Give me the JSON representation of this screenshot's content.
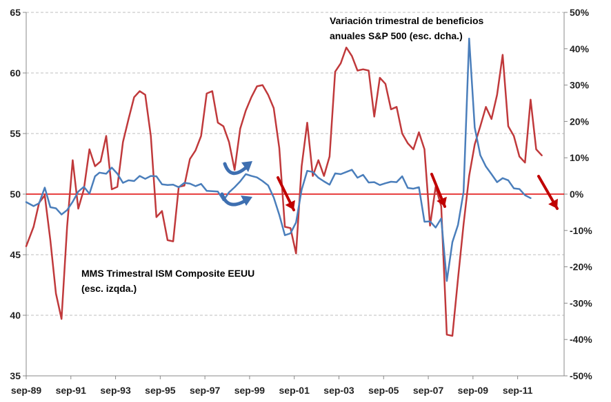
{
  "chart_data": {
    "type": "line",
    "x_labels": [
      "sep-89",
      "sep-91",
      "sep-93",
      "sep-95",
      "sep-97",
      "sep-99",
      "sep-01",
      "sep-03",
      "sep-05",
      "sep-07",
      "sep-09",
      "sep-11"
    ],
    "x_start_year": 1989.67,
    "x_end_year": 2013.75,
    "left_axis": {
      "label": "(esc. izqda.)",
      "ylim": [
        35,
        65
      ],
      "ticks": [
        "35",
        "40",
        "45",
        "50",
        "55",
        "60",
        "65"
      ]
    },
    "right_axis": {
      "label": "(esc. dcha.)",
      "ylim": [
        -50,
        50
      ],
      "ticks": [
        "-50%",
        "-40%",
        "-30%",
        "-20%",
        "-10%",
        "0%",
        "10%",
        "20%",
        "30%",
        "40%",
        "50%"
      ]
    },
    "zero_line_value": 0,
    "series": [
      {
        "name": "MMS Trimestral ISM Composite EEUU",
        "axis": "left",
        "color": "#C0393B",
        "points": [
          [
            1989.67,
            45.7
          ],
          [
            1990.0,
            47.3
          ],
          [
            1990.25,
            49.3
          ],
          [
            1990.5,
            49.9
          ],
          [
            1990.75,
            46.2
          ],
          [
            1991.0,
            41.8
          ],
          [
            1991.25,
            39.7
          ],
          [
            1991.5,
            47.3
          ],
          [
            1991.75,
            52.8
          ],
          [
            1992.0,
            48.8
          ],
          [
            1992.25,
            50.4
          ],
          [
            1992.5,
            53.7
          ],
          [
            1992.75,
            52.3
          ],
          [
            1993.0,
            52.7
          ],
          [
            1993.25,
            54.8
          ],
          [
            1993.5,
            50.4
          ],
          [
            1993.75,
            50.6
          ],
          [
            1994.0,
            54.3
          ],
          [
            1994.25,
            56.2
          ],
          [
            1994.5,
            58.0
          ],
          [
            1994.75,
            58.5
          ],
          [
            1995.0,
            58.2
          ],
          [
            1995.25,
            54.8
          ],
          [
            1995.5,
            48.1
          ],
          [
            1995.75,
            48.6
          ],
          [
            1996.0,
            46.2
          ],
          [
            1996.25,
            46.1
          ],
          [
            1996.5,
            50.6
          ],
          [
            1996.75,
            50.7
          ],
          [
            1997.0,
            52.9
          ],
          [
            1997.25,
            53.6
          ],
          [
            1997.5,
            54.8
          ],
          [
            1997.75,
            58.3
          ],
          [
            1998.0,
            58.5
          ],
          [
            1998.25,
            55.9
          ],
          [
            1998.5,
            55.6
          ],
          [
            1998.75,
            54.3
          ],
          [
            1999.0,
            52.0
          ],
          [
            1999.25,
            55.4
          ],
          [
            1999.5,
            56.9
          ],
          [
            1999.75,
            58.0
          ],
          [
            2000.0,
            58.9
          ],
          [
            2000.25,
            59.0
          ],
          [
            2000.5,
            58.2
          ],
          [
            2000.75,
            57.1
          ],
          [
            2001.0,
            53.8
          ],
          [
            2001.25,
            47.3
          ],
          [
            2001.5,
            47.2
          ],
          [
            2001.75,
            45.1
          ],
          [
            2002.0,
            52.3
          ],
          [
            2002.25,
            55.9
          ],
          [
            2002.5,
            51.5
          ],
          [
            2002.75,
            52.8
          ],
          [
            2003.0,
            51.5
          ],
          [
            2003.25,
            53.1
          ],
          [
            2003.5,
            60.1
          ],
          [
            2003.75,
            60.8
          ],
          [
            2004.0,
            62.1
          ],
          [
            2004.25,
            61.4
          ],
          [
            2004.5,
            60.2
          ],
          [
            2004.75,
            60.3
          ],
          [
            2005.0,
            60.2
          ],
          [
            2005.25,
            56.4
          ],
          [
            2005.5,
            59.6
          ],
          [
            2005.75,
            59.1
          ],
          [
            2006.0,
            57.0
          ],
          [
            2006.25,
            57.2
          ],
          [
            2006.5,
            55.0
          ],
          [
            2006.75,
            54.2
          ],
          [
            2007.0,
            53.7
          ],
          [
            2007.25,
            55.1
          ],
          [
            2007.5,
            53.7
          ],
          [
            2007.75,
            47.4
          ],
          [
            2008.0,
            50.6
          ],
          [
            2008.25,
            49.0
          ],
          [
            2008.5,
            38.4
          ],
          [
            2008.75,
            38.3
          ],
          [
            2009.0,
            43.0
          ],
          [
            2009.25,
            47.5
          ],
          [
            2009.5,
            51.5
          ],
          [
            2009.75,
            54.1
          ],
          [
            2010.0,
            55.6
          ],
          [
            2010.25,
            57.2
          ],
          [
            2010.5,
            56.2
          ],
          [
            2010.75,
            58.2
          ],
          [
            2011.0,
            61.5
          ],
          [
            2011.25,
            55.6
          ],
          [
            2011.5,
            54.8
          ],
          [
            2011.75,
            53.1
          ],
          [
            2012.0,
            52.6
          ],
          [
            2012.25,
            57.8
          ],
          [
            2012.5,
            53.7
          ],
          [
            2012.75,
            53.2
          ]
        ]
      },
      {
        "name": "Variación trimestral de beneficios anuales S&P 500",
        "axis": "right",
        "color": "#4A7EBB",
        "points": [
          [
            1989.67,
            -2.2
          ],
          [
            1990.0,
            -3.3
          ],
          [
            1990.25,
            -2.5
          ],
          [
            1990.5,
            1.8
          ],
          [
            1990.75,
            -3.6
          ],
          [
            1991.0,
            -3.9
          ],
          [
            1991.25,
            -5.6
          ],
          [
            1991.5,
            -4.4
          ],
          [
            1991.75,
            -2.1
          ],
          [
            1992.0,
            0.7
          ],
          [
            1992.25,
            2.0
          ],
          [
            1992.5,
            0.1
          ],
          [
            1992.75,
            4.9
          ],
          [
            1992.95,
            5.9
          ],
          [
            1993.25,
            5.6
          ],
          [
            1993.5,
            7.3
          ],
          [
            1993.75,
            5.6
          ],
          [
            1994.0,
            3.1
          ],
          [
            1994.25,
            3.8
          ],
          [
            1994.5,
            3.6
          ],
          [
            1994.75,
            5.0
          ],
          [
            1995.0,
            4.2
          ],
          [
            1995.25,
            5.0
          ],
          [
            1995.5,
            4.9
          ],
          [
            1995.75,
            2.7
          ],
          [
            1996.0,
            2.5
          ],
          [
            1996.25,
            2.6
          ],
          [
            1996.5,
            1.9
          ],
          [
            1996.75,
            3.1
          ],
          [
            1997.0,
            2.9
          ],
          [
            1997.25,
            2.2
          ],
          [
            1997.5,
            2.8
          ],
          [
            1997.75,
            0.9
          ],
          [
            1998.0,
            0.8
          ],
          [
            1998.25,
            0.7
          ],
          [
            1998.5,
            -1.7
          ],
          [
            1998.75,
            0.5
          ],
          [
            1999.0,
            1.9
          ],
          [
            1999.25,
            3.5
          ],
          [
            1999.5,
            5.5
          ],
          [
            1999.75,
            5.0
          ],
          [
            2000.0,
            4.6
          ],
          [
            2000.25,
            3.6
          ],
          [
            2000.5,
            2.4
          ],
          [
            2000.75,
            -0.9
          ],
          [
            2001.0,
            -5.7
          ],
          [
            2001.25,
            -11.3
          ],
          [
            2001.5,
            -10.8
          ],
          [
            2001.75,
            -7.8
          ],
          [
            2002.0,
            1.2
          ],
          [
            2002.25,
            6.4
          ],
          [
            2002.5,
            6.1
          ],
          [
            2002.75,
            4.5
          ],
          [
            2003.0,
            3.5
          ],
          [
            2003.25,
            2.6
          ],
          [
            2003.5,
            5.7
          ],
          [
            2003.75,
            5.5
          ],
          [
            2004.0,
            6.1
          ],
          [
            2004.25,
            6.7
          ],
          [
            2004.5,
            4.5
          ],
          [
            2004.75,
            5.3
          ],
          [
            2005.0,
            3.2
          ],
          [
            2005.25,
            3.3
          ],
          [
            2005.5,
            2.5
          ],
          [
            2005.75,
            3.0
          ],
          [
            2006.0,
            3.4
          ],
          [
            2006.25,
            3.3
          ],
          [
            2006.5,
            4.9
          ],
          [
            2006.75,
            1.7
          ],
          [
            2007.0,
            1.5
          ],
          [
            2007.25,
            1.9
          ],
          [
            2007.5,
            -7.6
          ],
          [
            2007.75,
            -7.5
          ],
          [
            2008.0,
            -9.2
          ],
          [
            2008.25,
            -6.7
          ],
          [
            2008.5,
            -23.9
          ],
          [
            2008.75,
            -13.2
          ],
          [
            2009.0,
            -8.5
          ],
          [
            2009.25,
            0.6
          ],
          [
            2009.5,
            42.8
          ],
          [
            2009.75,
            18.3
          ],
          [
            2010.0,
            10.7
          ],
          [
            2010.25,
            7.6
          ],
          [
            2010.5,
            5.5
          ],
          [
            2010.75,
            3.3
          ],
          [
            2011.0,
            4.4
          ],
          [
            2011.25,
            3.8
          ],
          [
            2011.5,
            1.6
          ],
          [
            2011.75,
            1.4
          ],
          [
            2012.0,
            -0.3
          ],
          [
            2012.25,
            -1.1
          ]
        ]
      }
    ],
    "annotations": [
      {
        "text_lines": [
          "Variación trimestral de beneficios",
          "anuales S&P 500 (esc. dcha.)"
        ],
        "color": "#4A7EBB"
      },
      {
        "text_lines": [
          "MMS Trimestral ISM Composite EEUU",
          "(esc. izqda.)"
        ],
        "color": "#C0393B"
      }
    ]
  }
}
